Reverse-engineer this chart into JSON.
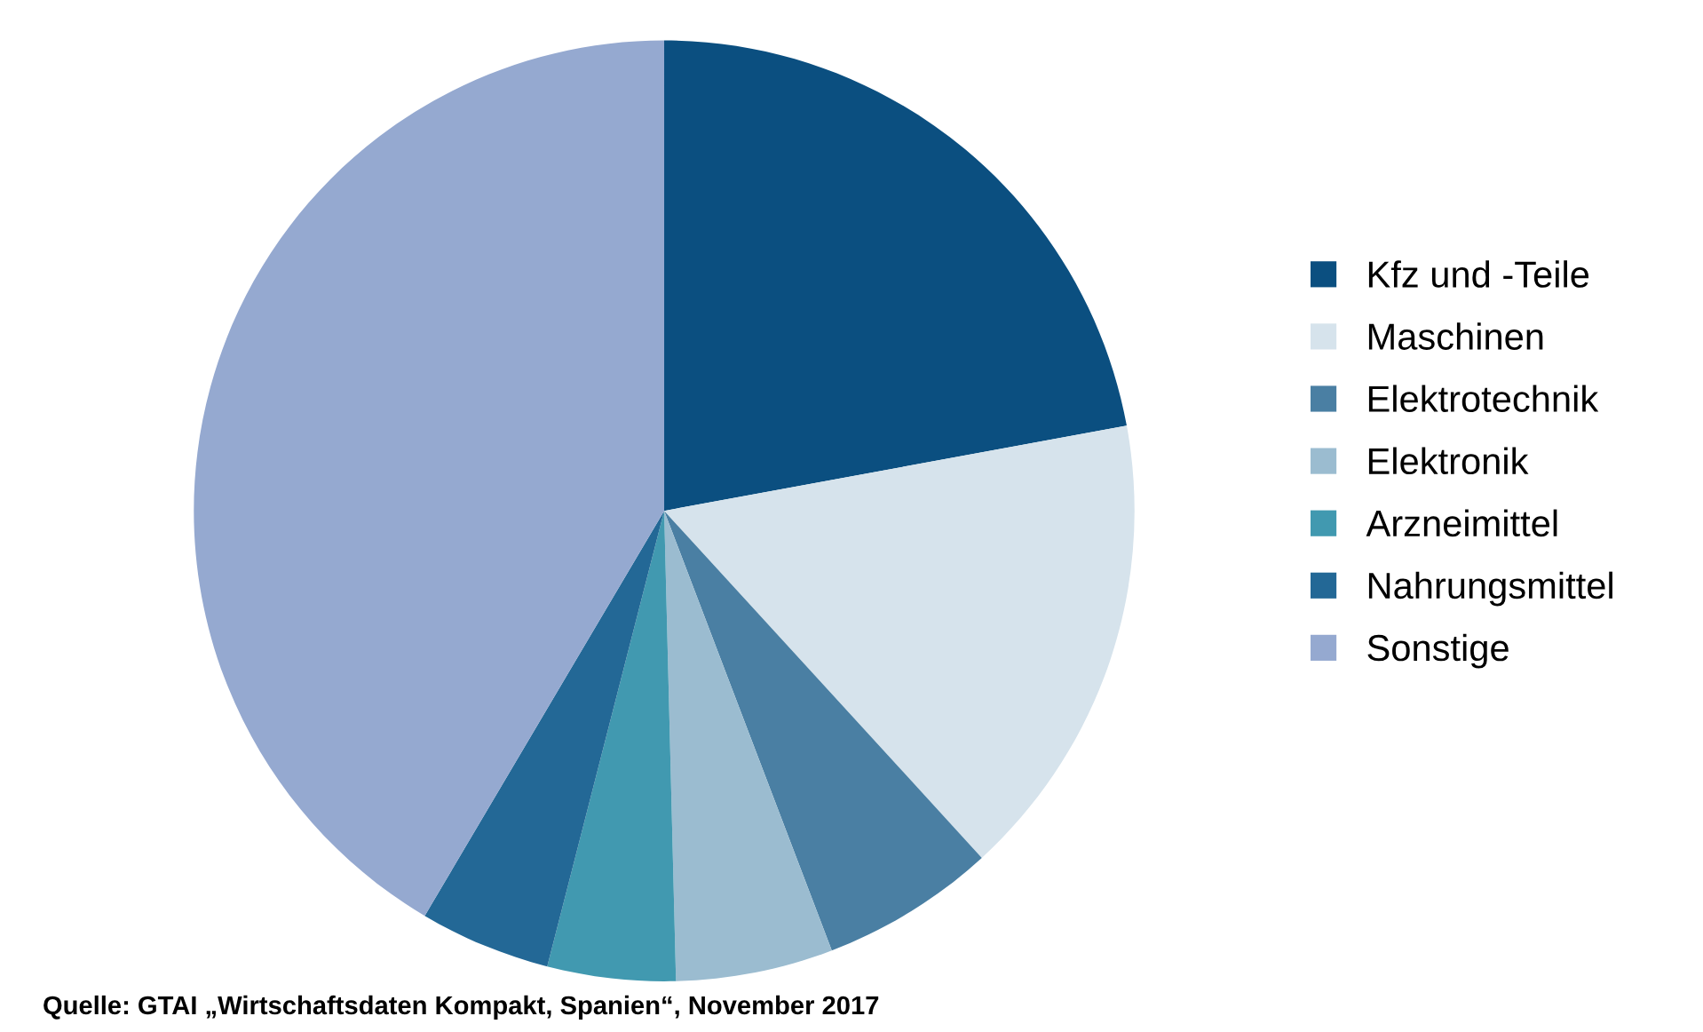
{
  "chart_data": {
    "type": "pie",
    "categories": [
      "Kfz und -Teile",
      "Maschinen",
      "Elektrotechnik",
      "Elektronik",
      "Arzneimittel",
      "Nahrungsmittel",
      "Sonstige"
    ],
    "values": [
      22.1,
      16.1,
      6.0,
      5.4,
      4.4,
      4.5,
      41.5
    ],
    "colors": [
      "#0b4f80",
      "#d6e3ec",
      "#4a7fa3",
      "#9bbcd0",
      "#4199b0",
      "#236896",
      "#95a9d0"
    ],
    "legend": "right",
    "annotations": [
      "Quelle: GTAI „Wirtschaftsdaten Kompakt, Spanien“, November 2017"
    ]
  }
}
